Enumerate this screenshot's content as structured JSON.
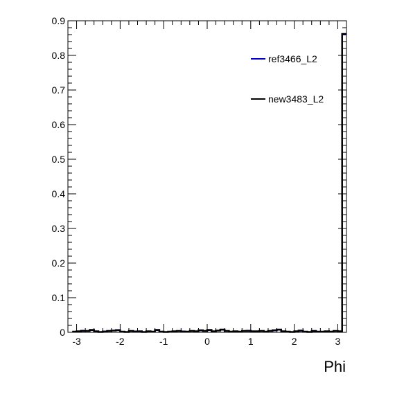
{
  "chart_data": {
    "type": "line",
    "title": "",
    "xlabel": "Phi",
    "ylabel": "",
    "xlim": [
      -3.2,
      3.2
    ],
    "ylim": [
      0,
      0.9
    ],
    "grid": false,
    "legend_position": "top-right",
    "x_ticks": [
      -3,
      -2,
      -1,
      0,
      1,
      2,
      3
    ],
    "x_tick_labels": [
      "-3",
      "-2",
      "-1",
      "0",
      "1",
      "2",
      "3"
    ],
    "y_ticks": [
      0,
      0.1,
      0.2,
      0.3,
      0.4,
      0.5,
      0.6,
      0.7,
      0.8,
      0.9
    ],
    "y_tick_labels": [
      "0",
      "0.1",
      "0.2",
      "0.3",
      "0.4",
      "0.5",
      "0.6",
      "0.7",
      "0.8",
      "0.9"
    ],
    "series": [
      {
        "name": "ref3466_L2",
        "color": "#0000cc",
        "x": [
          -3.05,
          -2.95,
          -2.85,
          -2.75,
          -2.65,
          -2.55,
          -2.45,
          -2.35,
          -2.25,
          -2.15,
          -2.05,
          -1.95,
          -1.85,
          -1.75,
          -1.65,
          -1.55,
          -1.45,
          -1.35,
          -1.25,
          -1.15,
          -1.05,
          -0.95,
          -0.85,
          -0.75,
          -0.65,
          -0.55,
          -0.45,
          -0.35,
          -0.25,
          -0.15,
          -0.05,
          0.05,
          0.15,
          0.25,
          0.35,
          0.45,
          0.55,
          0.65,
          0.75,
          0.85,
          0.95,
          1.05,
          1.15,
          1.25,
          1.35,
          1.45,
          1.55,
          1.65,
          1.75,
          1.85,
          1.95,
          2.05,
          2.15,
          2.25,
          2.35,
          2.45,
          2.55,
          2.65,
          2.75,
          2.85,
          2.95,
          3.05,
          3.15
        ],
        "y": [
          0.002,
          0.003,
          0.005,
          0.004,
          0.006,
          0.003,
          0.001,
          0.003,
          0.004,
          0.005,
          0.007,
          0.002,
          0.001,
          0.004,
          0.003,
          0.002,
          0.001,
          0.003,
          0.002,
          0.006,
          0.002,
          0.001,
          0.002,
          0.003,
          0.004,
          0.003,
          0.002,
          0.004,
          0.003,
          0.005,
          0.004,
          0.006,
          0.003,
          0.005,
          0.007,
          0.004,
          0.002,
          0.003,
          0.002,
          0.004,
          0.005,
          0.003,
          0.003,
          0.004,
          0.002,
          0.004,
          0.005,
          0.007,
          0.003,
          0.002,
          0.001,
          0.003,
          0.004,
          0.002,
          0.001,
          0.003,
          0.002,
          0.002,
          0.003,
          0.002,
          0.004,
          0.003,
          0.86
        ]
      },
      {
        "name": "new3483_L2",
        "color": "#000000",
        "x": [
          -3.05,
          -2.95,
          -2.85,
          -2.75,
          -2.65,
          -2.55,
          -2.45,
          -2.35,
          -2.25,
          -2.15,
          -2.05,
          -1.95,
          -1.85,
          -1.75,
          -1.65,
          -1.55,
          -1.45,
          -1.35,
          -1.25,
          -1.15,
          -1.05,
          -0.95,
          -0.85,
          -0.75,
          -0.65,
          -0.55,
          -0.45,
          -0.35,
          -0.25,
          -0.15,
          -0.05,
          0.05,
          0.15,
          0.25,
          0.35,
          0.45,
          0.55,
          0.65,
          0.75,
          0.85,
          0.95,
          1.05,
          1.15,
          1.25,
          1.35,
          1.45,
          1.55,
          1.65,
          1.75,
          1.85,
          1.95,
          2.05,
          2.15,
          2.25,
          2.35,
          2.45,
          2.55,
          2.65,
          2.75,
          2.85,
          2.95,
          3.05,
          3.15
        ],
        "y": [
          0.002,
          0.003,
          0.004,
          0.004,
          0.007,
          0.003,
          0.001,
          0.002,
          0.004,
          0.005,
          0.006,
          0.002,
          0.001,
          0.004,
          0.002,
          0.003,
          0.001,
          0.003,
          0.002,
          0.007,
          0.002,
          0.001,
          0.002,
          0.003,
          0.004,
          0.002,
          0.002,
          0.004,
          0.003,
          0.006,
          0.004,
          0.007,
          0.003,
          0.005,
          0.008,
          0.004,
          0.002,
          0.003,
          0.002,
          0.004,
          0.004,
          0.003,
          0.003,
          0.004,
          0.002,
          0.004,
          0.006,
          0.008,
          0.003,
          0.002,
          0.001,
          0.003,
          0.005,
          0.002,
          0.001,
          0.004,
          0.002,
          0.002,
          0.003,
          0.002,
          0.004,
          0.003,
          0.862
        ]
      }
    ]
  }
}
